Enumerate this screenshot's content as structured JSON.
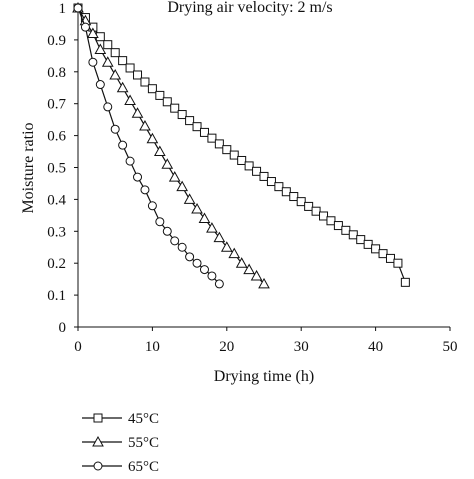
{
  "chart_data": {
    "type": "line",
    "title": "Drying air velocity: 2 m/s",
    "xlabel": "Drying time (h)",
    "ylabel": "Moisture ratio",
    "xlim": [
      0,
      50
    ],
    "ylim": [
      0,
      1
    ],
    "x_ticks": [
      "0",
      "10",
      "20",
      "30",
      "40",
      "50"
    ],
    "y_ticks": [
      "0",
      "0.1",
      "0.2",
      "0.3",
      "0.4",
      "0.5",
      "0.6",
      "0.7",
      "0.8",
      "0.9",
      "1"
    ],
    "grid": false,
    "legend_position": "bottom",
    "series": [
      {
        "name": "45°C",
        "marker": "square",
        "color": "#111111",
        "x": [
          0,
          1,
          2,
          3,
          4,
          5,
          6,
          7,
          8,
          9,
          10,
          11,
          12,
          13,
          14,
          15,
          16,
          17,
          18,
          19,
          20,
          21,
          22,
          23,
          24,
          25,
          26,
          27,
          28,
          29,
          30,
          31,
          32,
          33,
          34,
          35,
          36,
          37,
          38,
          39,
          40,
          41,
          42,
          43,
          44
        ],
        "y": [
          1.0,
          0.97,
          0.94,
          0.91,
          0.885,
          0.86,
          0.835,
          0.812,
          0.79,
          0.768,
          0.747,
          0.726,
          0.706,
          0.686,
          0.666,
          0.647,
          0.628,
          0.61,
          0.592,
          0.574,
          0.556,
          0.539,
          0.522,
          0.505,
          0.488,
          0.472,
          0.456,
          0.44,
          0.424,
          0.409,
          0.393,
          0.378,
          0.363,
          0.348,
          0.333,
          0.318,
          0.303,
          0.289,
          0.274,
          0.259,
          0.245,
          0.23,
          0.215,
          0.2,
          0.14
        ]
      },
      {
        "name": "55°C",
        "marker": "triangle",
        "color": "#111111",
        "x": [
          0,
          1,
          2,
          3,
          4,
          5,
          6,
          7,
          8,
          9,
          10,
          11,
          12,
          13,
          14,
          15,
          16,
          17,
          18,
          19,
          20,
          21,
          22,
          23,
          24,
          25
        ],
        "y": [
          1.0,
          0.96,
          0.92,
          0.87,
          0.83,
          0.79,
          0.75,
          0.71,
          0.67,
          0.63,
          0.59,
          0.55,
          0.51,
          0.47,
          0.44,
          0.4,
          0.37,
          0.34,
          0.31,
          0.28,
          0.25,
          0.23,
          0.2,
          0.18,
          0.16,
          0.135
        ]
      },
      {
        "name": "65°C",
        "marker": "circle",
        "color": "#111111",
        "x": [
          0,
          1,
          2,
          3,
          4,
          5,
          6,
          7,
          8,
          9,
          10,
          11,
          12,
          13,
          14,
          15,
          16,
          17,
          18,
          19
        ],
        "y": [
          1.0,
          0.94,
          0.83,
          0.76,
          0.69,
          0.62,
          0.57,
          0.52,
          0.47,
          0.43,
          0.38,
          0.33,
          0.3,
          0.27,
          0.25,
          0.22,
          0.2,
          0.18,
          0.16,
          0.135
        ]
      }
    ]
  }
}
